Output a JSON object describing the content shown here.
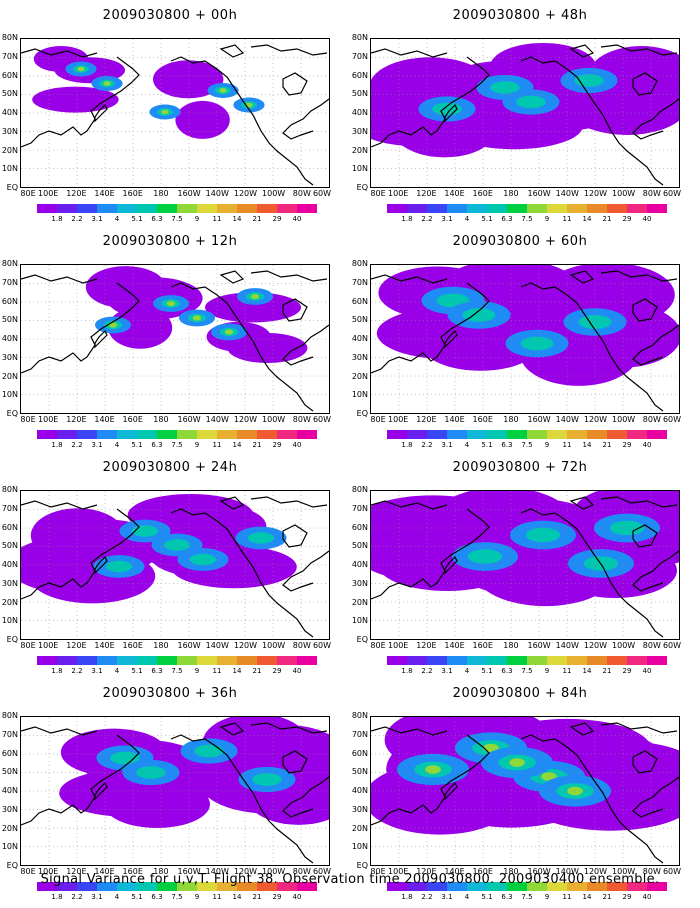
{
  "panels": [
    {
      "title": "2009030800 + 00h",
      "col": 0,
      "row": 0,
      "coverage": 0.12,
      "intensity": 0.55
    },
    {
      "title": "2009030800 + 48h",
      "col": 1,
      "row": 0,
      "coverage": 0.55,
      "intensity": 0.3
    },
    {
      "title": "2009030800 + 12h",
      "col": 0,
      "row": 1,
      "coverage": 0.2,
      "intensity": 0.55
    },
    {
      "title": "2009030800 + 60h",
      "col": 1,
      "row": 1,
      "coverage": 0.65,
      "intensity": 0.35
    },
    {
      "title": "2009030800 + 24h",
      "col": 0,
      "row": 2,
      "coverage": 0.45,
      "intensity": 0.45
    },
    {
      "title": "2009030800 + 72h",
      "col": 1,
      "row": 2,
      "coverage": 0.7,
      "intensity": 0.4
    },
    {
      "title": "2009030800 + 36h",
      "col": 0,
      "row": 3,
      "coverage": 0.55,
      "intensity": 0.4
    },
    {
      "title": "2009030800 + 84h",
      "col": 1,
      "row": 3,
      "coverage": 0.8,
      "intensity": 0.5
    }
  ],
  "lat_labels": [
    "80N",
    "70N",
    "60N",
    "50N",
    "40N",
    "30N",
    "20N",
    "10N",
    "EQ"
  ],
  "lon_labels": [
    "80E",
    "100E",
    "120E",
    "140E",
    "160E",
    "180",
    "160W",
    "140W",
    "120W",
    "100W",
    "80W",
    "60W"
  ],
  "colorbar": {
    "labels": [
      "1.8",
      "2.2",
      "3.1",
      "4",
      "5.1",
      "6.3",
      "7.5",
      "9",
      "11",
      "14",
      "21",
      "29",
      "40"
    ],
    "colors": [
      "#9a00e8",
      "#6a1ef0",
      "#3a46f5",
      "#1f8cf5",
      "#10b8d8",
      "#00c8b0",
      "#00d040",
      "#90d838",
      "#dcd83a",
      "#e8b030",
      "#e88a28",
      "#f05a30",
      "#f02880",
      "#e800a0"
    ]
  },
  "footer": "Signal Variance for u,v,T. Flight 38. Observation time 2009030800. 2009030400 ensemble."
}
